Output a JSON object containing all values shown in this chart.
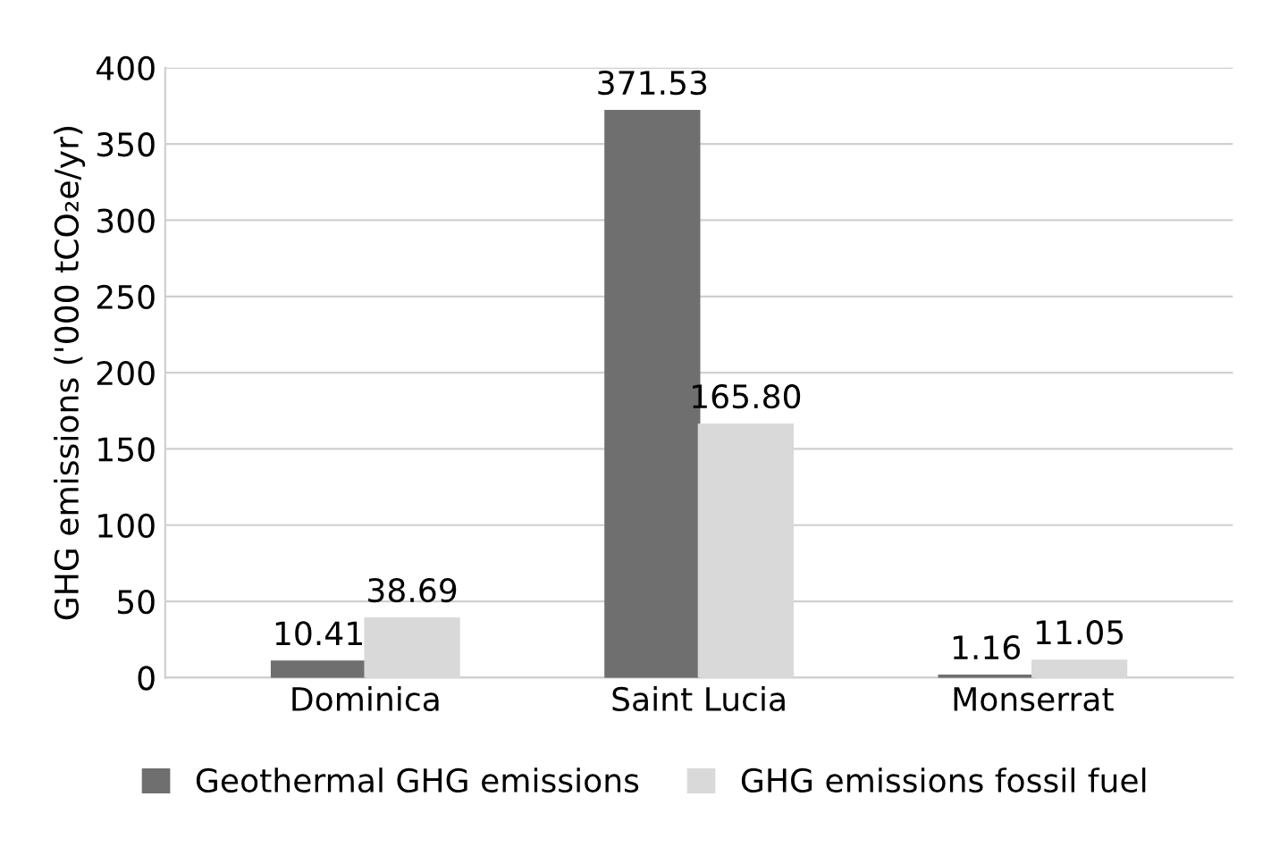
{
  "chart_data": {
    "type": "bar",
    "ylabel": "GHG emissions ('000 tCO₂e/yr)",
    "categories": [
      "Dominica",
      "Saint Lucia",
      "Monserrat"
    ],
    "series": [
      {
        "name": "Geothermal GHG emissions",
        "color": "#6f6f6f",
        "values": [
          10.41,
          371.53,
          1.16
        ]
      },
      {
        "name": "GHG emissions fossil fuel",
        "color": "#d9d9d9",
        "values": [
          38.69,
          165.8,
          11.05
        ]
      }
    ],
    "value_labels": [
      [
        "10.41",
        "371.53",
        "1.16"
      ],
      [
        "38.69",
        "165.80",
        "11.05"
      ]
    ],
    "ylim": [
      0,
      400
    ],
    "yticks": [
      0,
      50,
      100,
      150,
      200,
      250,
      300,
      350,
      400
    ],
    "grid": "y",
    "legend": "bottom"
  }
}
